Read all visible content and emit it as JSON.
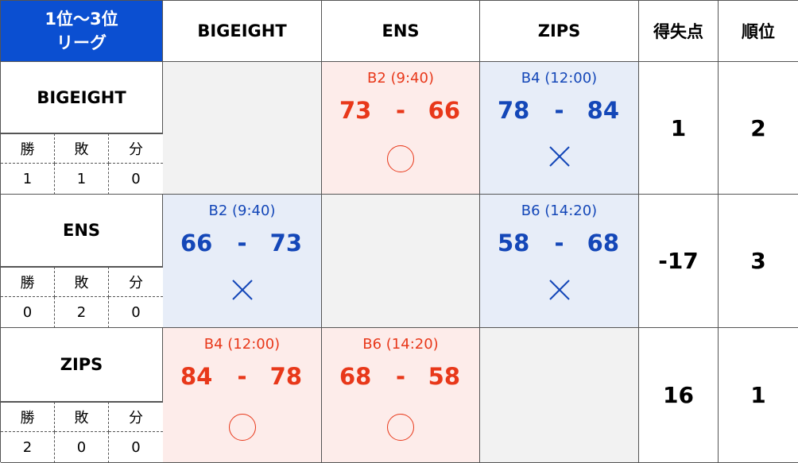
{
  "header": {
    "corner_line1": "1位〜3位",
    "corner_line2": "リーグ",
    "cols": [
      "BIGEIGHT",
      "ENS",
      "ZIPS"
    ],
    "points_label": "得失点",
    "rank_label": "順位"
  },
  "record_labels": [
    "勝",
    "敗",
    "分"
  ],
  "teams": [
    {
      "name": "BIGEIGHT",
      "wins": "1",
      "losses": "1",
      "draws": "0",
      "points": "1",
      "rank": "2",
      "matches": [
        null,
        {
          "time": "B2 (9:40)",
          "score_a": "73",
          "sep": "-",
          "score_b": "66",
          "result": "win"
        },
        {
          "time": "B4 (12:00)",
          "score_a": "78",
          "sep": "-",
          "score_b": "84",
          "result": "lose"
        }
      ]
    },
    {
      "name": "ENS",
      "wins": "0",
      "losses": "2",
      "draws": "0",
      "points": "-17",
      "rank": "3",
      "matches": [
        {
          "time": "B2 (9:40)",
          "score_a": "66",
          "sep": "-",
          "score_b": "73",
          "result": "lose"
        },
        null,
        {
          "time": "B6 (14:20)",
          "score_a": "58",
          "sep": "-",
          "score_b": "68",
          "result": "lose"
        }
      ]
    },
    {
      "name": "ZIPS",
      "wins": "2",
      "losses": "0",
      "draws": "0",
      "points": "16",
      "rank": "1",
      "matches": [
        {
          "time": "B4 (12:00)",
          "score_a": "84",
          "sep": "-",
          "score_b": "78",
          "result": "win"
        },
        {
          "time": "B6 (14:20)",
          "score_a": "68",
          "sep": "-",
          "score_b": "58",
          "result": "win"
        },
        null
      ]
    }
  ],
  "colors": {
    "header_blue": "#0b4fd1",
    "win_red": "#e8381a",
    "win_bg": "#fdecea",
    "lose_blue": "#1447b8",
    "lose_bg": "#e7edf8",
    "empty_bg": "#f2f2f2"
  },
  "icons": {
    "win": "circle-icon",
    "lose": "cross-icon"
  }
}
